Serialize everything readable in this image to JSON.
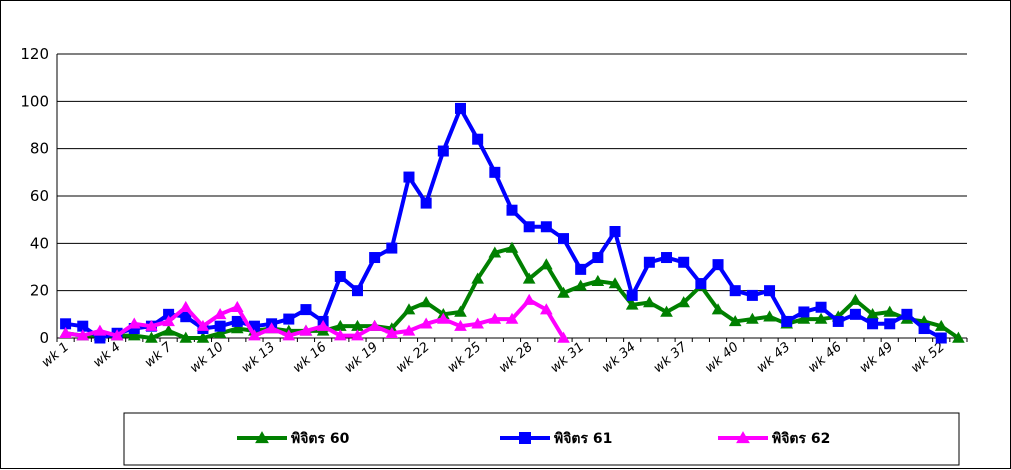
{
  "chart_data": {
    "type": "line",
    "title": "",
    "xlabel": "",
    "ylabel": "",
    "ylim": [
      0,
      120
    ],
    "y_ticks": [
      0,
      20,
      40,
      60,
      80,
      100,
      120
    ],
    "grid": true,
    "legend_position": "bottom",
    "categories": [
      "wk 1",
      "wk 2",
      "wk 3",
      "wk 4",
      "wk 5",
      "wk 6",
      "wk 7",
      "wk 8",
      "wk 9",
      "wk 10",
      "wk 11",
      "wk 12",
      "wk 13",
      "wk 14",
      "wk 15",
      "wk 16",
      "wk 17",
      "wk 18",
      "wk 19",
      "wk 20",
      "wk 21",
      "wk 22",
      "wk 23",
      "wk 24",
      "wk 25",
      "wk 26",
      "wk 27",
      "wk 28",
      "wk 29",
      "wk 30",
      "wk 31",
      "wk 32",
      "wk 33",
      "wk 34",
      "wk 35",
      "wk 36",
      "wk 37",
      "wk 38",
      "wk 39",
      "wk 40",
      "wk 41",
      "wk 42",
      "wk 43",
      "wk 44",
      "wk 45",
      "wk 46",
      "wk 47",
      "wk 48",
      "wk 49",
      "wk 50",
      "wk 51",
      "wk 52",
      "wk 53"
    ],
    "x_tick_labels": [
      "wk 1",
      "wk 4",
      "wk 7",
      "wk 10",
      "wk 13",
      "wk 16",
      "wk 19",
      "wk 22",
      "wk 25",
      "wk 28",
      "wk 31",
      "wk 34",
      "wk 37",
      "wk 40",
      "wk 43",
      "wk 46",
      "wk 49",
      "wk 52"
    ],
    "series": [
      {
        "name": "พิจิตร 60",
        "color": "#008000",
        "marker": "triangle",
        "values": [
          2,
          1,
          1,
          1,
          1,
          0,
          3,
          0,
          0,
          2,
          4,
          3,
          4,
          3,
          3,
          3,
          5,
          5,
          5,
          4,
          12,
          15,
          10,
          11,
          25,
          36,
          38,
          25,
          31,
          19,
          22,
          24,
          23,
          14,
          15,
          11,
          15,
          22,
          12,
          7,
          8,
          9,
          6,
          8,
          8,
          9,
          16,
          10,
          11,
          8,
          7,
          5,
          0
        ]
      },
      {
        "name": "พิจิตร 61",
        "color": "#0000FF",
        "marker": "square",
        "values": [
          6,
          5,
          0,
          2,
          4,
          5,
          10,
          9,
          4,
          5,
          7,
          5,
          6,
          8,
          12,
          7,
          26,
          20,
          34,
          38,
          68,
          57,
          79,
          97,
          84,
          70,
          54,
          47,
          47,
          42,
          29,
          34,
          45,
          18,
          32,
          34,
          32,
          23,
          31,
          20,
          18,
          20,
          7,
          11,
          13,
          7,
          10,
          6,
          6,
          10,
          4,
          0,
          null
        ]
      },
      {
        "name": "พิจิตร 62",
        "color": "#FF00FF",
        "marker": "triangle",
        "values": [
          2,
          1,
          3,
          1,
          6,
          5,
          7,
          13,
          5,
          10,
          13,
          1,
          4,
          1,
          3,
          5,
          1,
          1,
          5,
          2,
          3,
          6,
          8,
          5,
          6,
          8,
          8,
          16,
          12,
          0,
          null,
          null,
          null,
          null,
          null,
          null,
          null,
          null,
          null,
          null,
          null,
          null,
          null,
          null,
          null,
          null,
          null,
          null,
          null,
          null,
          null,
          null,
          null
        ]
      }
    ]
  }
}
